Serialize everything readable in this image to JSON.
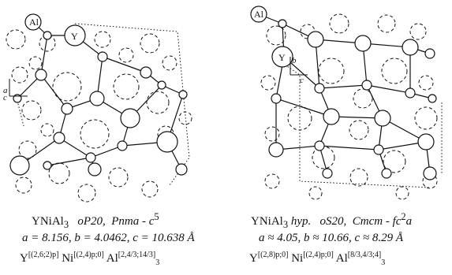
{
  "panel_left": {
    "atom_label_al": "Al",
    "atom_label_y": "Y",
    "axis_a": "a",
    "axis_c": "c",
    "caption": {
      "compound": "YNiAl",
      "compound_sub": "3",
      "pearson": "oP20,",
      "spacegroup": "Pnma - c",
      "spacegroup_sup": "5",
      "lattice": "a = 8.156,  b = 4.0462,  c = 10.638 Å",
      "formula_y": "Y",
      "formula_y_sup": "[(2,6;2)p]",
      "formula_ni": "Ni",
      "formula_ni_sup": "[(2,4)p;0]",
      "formula_al": "Al",
      "formula_al_sup": "[2,4/3;14/3]",
      "formula_al_sub": "3"
    }
  },
  "panel_right": {
    "atom_label_al": "Al",
    "atom_label_y": "Y",
    "axis_b": "b",
    "axis_c": "c",
    "caption": {
      "compound": "YNiAl",
      "compound_sub": "3",
      "hyp": "hyp.",
      "pearson": "oS20,",
      "spacegroup": "Cmcm - fc",
      "spacegroup_sup": "2",
      "spacegroup_tail": "a",
      "lattice": "a ≈ 4.05,  b ≈ 10.66,  c ≈ 8.29 Å",
      "formula_y": "Y",
      "formula_y_sup": "[(2,8)p;0]",
      "formula_ni": "Ni",
      "formula_ni_sup": "[(2,4)p;0]",
      "formula_al": "Al",
      "formula_al_sup": "[8/3,4/3;4]",
      "formula_al_sub": "3"
    }
  }
}
